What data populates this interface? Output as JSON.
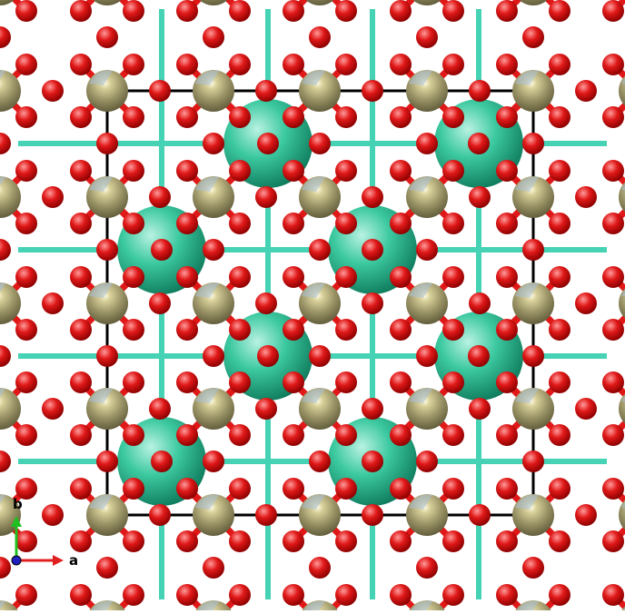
{
  "viewer": {
    "background": "#ffffff",
    "unit_cell_color": "#000000"
  },
  "axes": {
    "a_label": "a",
    "b_label": "b",
    "a_color": "#e02020",
    "b_color": "#20c020",
    "c_color": "#2020c0"
  },
  "atoms": {
    "large": {
      "color": "#3cc9a0",
      "highlight": "#b9f2e2",
      "shade": "#0e7a5c"
    },
    "medium": {
      "color": "#9b9467",
      "highlight": "#fffbe0",
      "shade": "#5b5636",
      "tint": "#a8bfd8"
    },
    "oxygen": {
      "color": "#e01818",
      "highlight": "#ff9a9a",
      "shade": "#8a0000"
    },
    "bond_colors": {
      "medium_oxygen": "#aaa270",
      "large_link": "#46d2b4",
      "oxygen": "#e01818"
    }
  }
}
